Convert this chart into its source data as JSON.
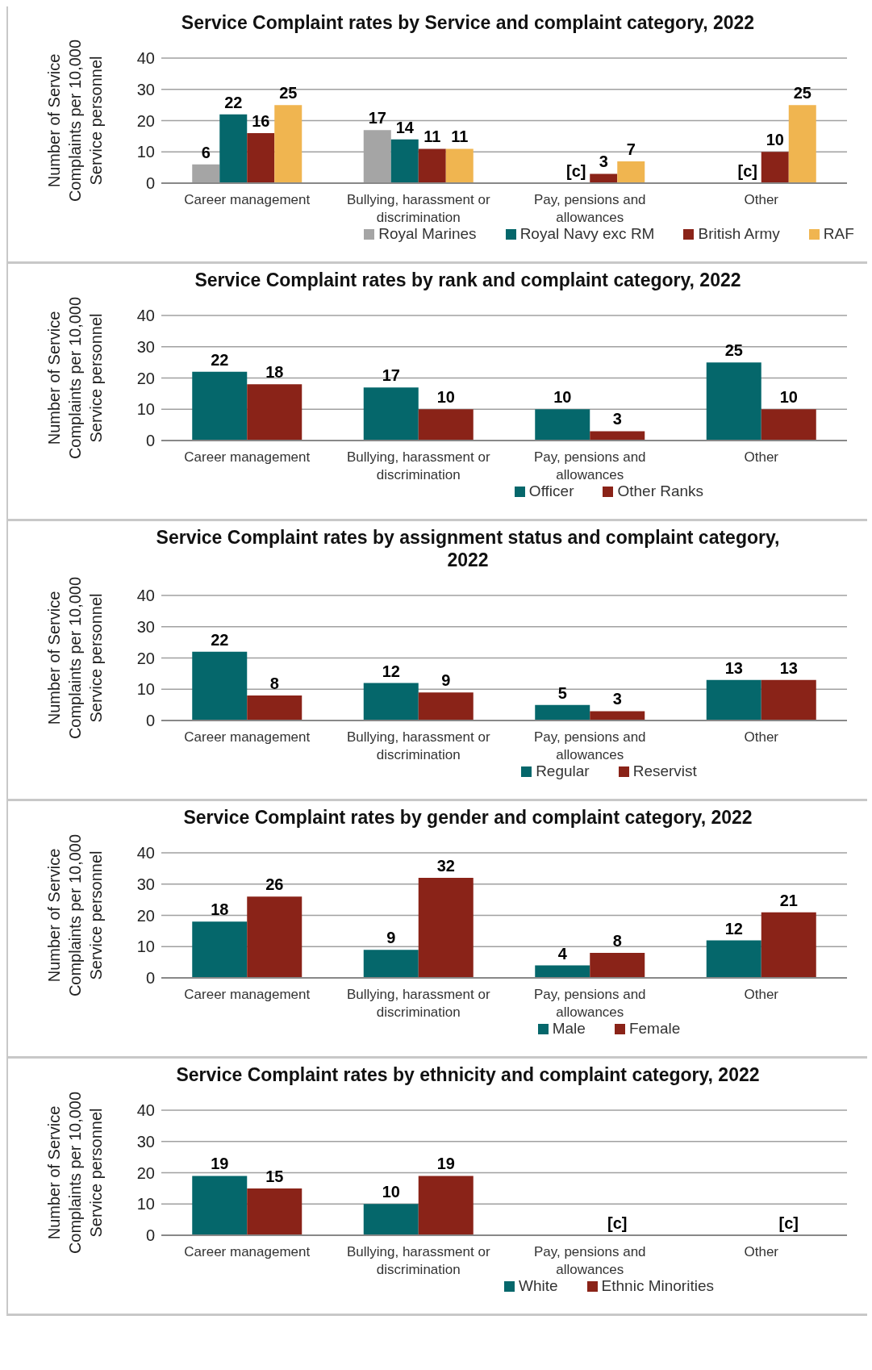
{
  "chart_data": [
    {
      "type": "bar",
      "title": "Service Complaint rates by Service and complaint category, 2022",
      "ylabel": "Number of Service Complaints per 10,000 Service personnel",
      "categories": [
        "Career management",
        "Bullying, harassment or discrimination",
        "Pay, pensions and allowances",
        "Other"
      ],
      "ylim": [
        0,
        40
      ],
      "yticks": [
        0,
        10,
        20,
        30,
        40
      ],
      "grid": "y",
      "legend": "bottom",
      "series": [
        {
          "name": "Royal Marines",
          "color": "#a5a5a5",
          "values": [
            6,
            17,
            null,
            null
          ],
          "value_labels": [
            "6",
            "17",
            null,
            null
          ]
        },
        {
          "name": "Royal Navy exc RM",
          "color": "#05676b",
          "values": [
            22,
            14,
            null,
            null
          ],
          "value_labels": [
            "22",
            "14",
            "[c]",
            "[c]"
          ]
        },
        {
          "name": "British Army",
          "color": "#8a2318",
          "values": [
            16,
            11,
            3,
            10
          ],
          "value_labels": [
            "16",
            "11",
            "3",
            "10"
          ]
        },
        {
          "name": "RAF",
          "color": "#f0b550",
          "values": [
            25,
            11,
            7,
            25
          ],
          "value_labels": [
            "25",
            "11",
            "7",
            "25"
          ]
        }
      ]
    },
    {
      "type": "bar",
      "title": "Service Complaint rates by rank and complaint category, 2022",
      "ylabel": "Number of Service Complaints per 10,000 Service personnel",
      "categories": [
        "Career management",
        "Bullying, harassment or discrimination",
        "Pay, pensions and allowances",
        "Other"
      ],
      "ylim": [
        0,
        40
      ],
      "yticks": [
        0,
        10,
        20,
        30,
        40
      ],
      "grid": "y",
      "legend": "bottom",
      "series": [
        {
          "name": "Officer",
          "color": "#05676b",
          "values": [
            22,
            17,
            10,
            25
          ],
          "value_labels": [
            "22",
            "17",
            "10",
            "25"
          ]
        },
        {
          "name": "Other Ranks",
          "color": "#8a2318",
          "values": [
            18,
            10,
            3,
            10
          ],
          "value_labels": [
            "18",
            "10",
            "3",
            "10"
          ]
        }
      ]
    },
    {
      "type": "bar",
      "title": "Service Complaint rates by assignment status and complaint category, 2022",
      "ylabel": "Number of Service Complaints per 10,000 Service personnel",
      "categories": [
        "Career management",
        "Bullying, harassment or discrimination",
        "Pay, pensions and allowances",
        "Other"
      ],
      "ylim": [
        0,
        40
      ],
      "yticks": [
        0,
        10,
        20,
        30,
        40
      ],
      "grid": "y",
      "legend": "bottom",
      "series": [
        {
          "name": "Regular",
          "color": "#05676b",
          "values": [
            22,
            12,
            5,
            13
          ],
          "value_labels": [
            "22",
            "12",
            "5",
            "13"
          ]
        },
        {
          "name": "Reservist",
          "color": "#8a2318",
          "values": [
            8,
            9,
            3,
            13
          ],
          "value_labels": [
            "8",
            "9",
            "3",
            "13"
          ]
        }
      ]
    },
    {
      "type": "bar",
      "title": "Service Complaint rates by gender and complaint category, 2022",
      "ylabel": "Number of Service Complaints per 10,000 Service personnel",
      "categories": [
        "Career management",
        "Bullying, harassment or discrimination",
        "Pay, pensions and allowances",
        "Other"
      ],
      "ylim": [
        0,
        40
      ],
      "yticks": [
        0,
        10,
        20,
        30,
        40
      ],
      "grid": "y",
      "legend": "bottom",
      "series": [
        {
          "name": "Male",
          "color": "#05676b",
          "values": [
            18,
            9,
            4,
            12
          ],
          "value_labels": [
            "18",
            "9",
            "4",
            "12"
          ]
        },
        {
          "name": "Female",
          "color": "#8a2318",
          "values": [
            26,
            32,
            8,
            21
          ],
          "value_labels": [
            "26",
            "32",
            "8",
            "21"
          ]
        }
      ]
    },
    {
      "type": "bar",
      "title": "Service Complaint rates by ethnicity and complaint category, 2022",
      "ylabel": "Number of Service Complaints per 10,000 Service personnel",
      "categories": [
        "Career management",
        "Bullying, harassment or discrimination",
        "Pay, pensions and allowances",
        "Other"
      ],
      "ylim": [
        0,
        40
      ],
      "yticks": [
        0,
        10,
        20,
        30,
        40
      ],
      "grid": "y",
      "legend": "bottom",
      "series": [
        {
          "name": "White",
          "color": "#05676b",
          "values": [
            19,
            10,
            null,
            null
          ],
          "value_labels": [
            "19",
            "10",
            null,
            null
          ]
        },
        {
          "name": "Ethnic Minorities",
          "color": "#8a2318",
          "values": [
            15,
            19,
            null,
            null
          ],
          "value_labels": [
            "15",
            "19",
            "[c]",
            "[c]"
          ]
        }
      ]
    }
  ]
}
